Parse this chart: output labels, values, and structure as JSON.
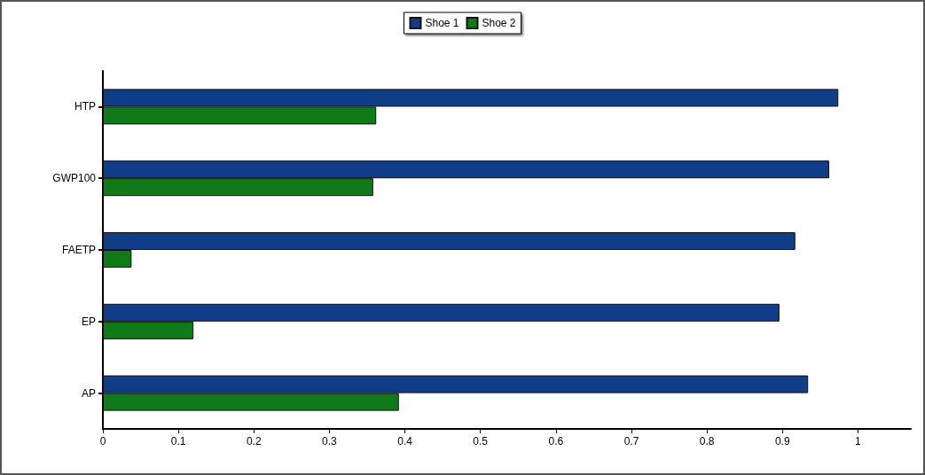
{
  "chart_data": {
    "type": "bar",
    "orientation": "horizontal",
    "categories": [
      "HTP",
      "GWP100",
      "FAETP",
      "EP",
      "AP"
    ],
    "series": [
      {
        "name": "Shoe 1",
        "color": "#0f3d87",
        "values": [
          0.974,
          0.962,
          0.917,
          0.896,
          0.934
        ]
      },
      {
        "name": "Shoe 2",
        "color": "#0f7a17",
        "values": [
          0.362,
          0.358,
          0.038,
          0.12,
          0.392
        ]
      }
    ],
    "xlim": [
      0,
      1.07
    ],
    "xticks": [
      0,
      0.1,
      0.2,
      0.3,
      0.4,
      0.5,
      0.6,
      0.7,
      0.8,
      0.9,
      1
    ],
    "grid": false,
    "legend": "top"
  }
}
